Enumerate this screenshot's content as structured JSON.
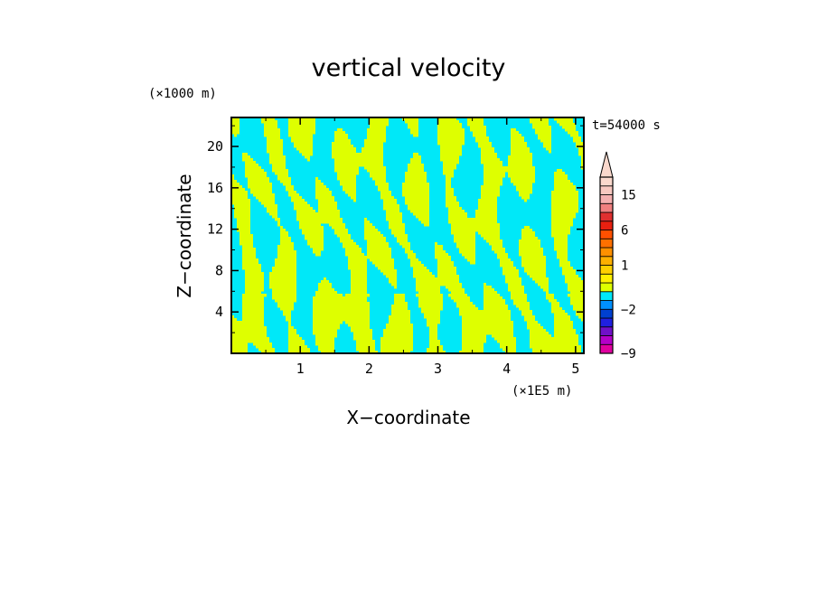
{
  "chart_data": {
    "type": "heatmap",
    "title": "vertical velocity",
    "xlabel": "X−coordinate",
    "ylabel": "Z−coordinate",
    "x_unit": "(×1E5 m)",
    "y_unit": "(×1000 m)",
    "time_label": "t=54000 s",
    "xlim": [
      0,
      5.12
    ],
    "ylim": [
      0,
      22.8
    ],
    "x_ticks": [
      1,
      2,
      3,
      4,
      5
    ],
    "y_ticks": [
      4,
      8,
      12,
      16,
      20
    ],
    "field_colors": {
      "positive_weak": "#deff00",
      "negative_weak": "#00e8f8"
    },
    "colorbar": {
      "levels": [
        -9,
        -8,
        -6,
        -4,
        -3,
        -2,
        -1,
        -0.5,
        0,
        0.5,
        1,
        2,
        3,
        4,
        6,
        8,
        10,
        12,
        15,
        20,
        24
      ],
      "colors": [
        "#e000a0",
        "#b400c8",
        "#7010c8",
        "#2020e0",
        "#0040d0",
        "#0090ff",
        "#00e8f8",
        "#deff00",
        "#fff000",
        "#ffd000",
        "#ffb000",
        "#ff9000",
        "#ff7000",
        "#ff5000",
        "#e82010",
        "#e03030",
        "#f08080",
        "#f5b0b0",
        "#f8c8c0",
        "#fad8cc"
      ],
      "extend": "max",
      "labeled_ticks": [
        {
          "value": 15,
          "label": "15"
        },
        {
          "value": 6,
          "label": "6"
        },
        {
          "value": 1,
          "label": "1"
        },
        {
          "value": -2,
          "label": "−2"
        },
        {
          "value": -9,
          "label": "−9"
        }
      ]
    }
  }
}
